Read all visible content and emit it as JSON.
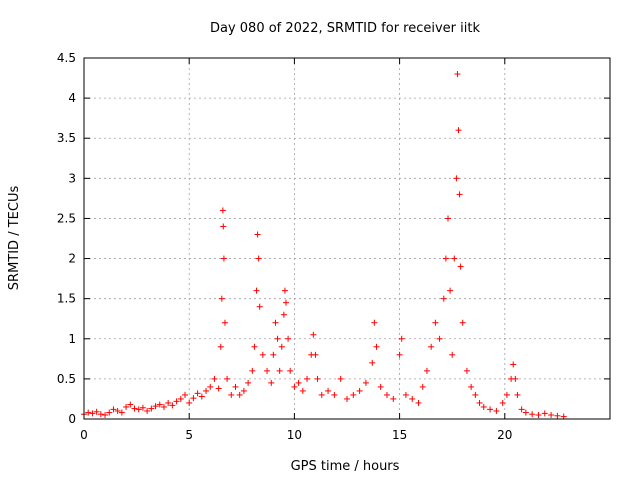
{
  "chart_data": {
    "type": "scatter",
    "title": "Day 080 of 2022, SRMTID for receiver iitk",
    "xlabel": "GPS time / hours",
    "ylabel": "SRMTID / TECUs",
    "xlim": [
      0,
      25
    ],
    "ylim": [
      0,
      4.5
    ],
    "x_ticks": [
      0,
      5,
      10,
      15,
      20
    ],
    "x_tick_labels": [
      "0",
      "5",
      "10",
      "15",
      "20"
    ],
    "y_ticks": [
      0,
      0.5,
      1,
      1.5,
      2,
      2.5,
      3,
      3.5,
      4,
      4.5
    ],
    "y_tick_labels": [
      "0",
      "0.5",
      "1",
      "1.5",
      "2",
      "2.5",
      "3",
      "3.5",
      "4",
      "4.5"
    ],
    "grid": true,
    "marker": "+",
    "color": "#ff0000",
    "series": [
      {
        "name": "SRMTID",
        "points": [
          [
            0.0,
            0.06
          ],
          [
            0.2,
            0.08
          ],
          [
            0.4,
            0.07
          ],
          [
            0.6,
            0.09
          ],
          [
            0.8,
            0.06
          ],
          [
            1.0,
            0.05
          ],
          [
            1.2,
            0.08
          ],
          [
            1.4,
            0.12
          ],
          [
            1.6,
            0.1
          ],
          [
            1.8,
            0.08
          ],
          [
            2.0,
            0.15
          ],
          [
            2.2,
            0.18
          ],
          [
            2.4,
            0.13
          ],
          [
            2.6,
            0.12
          ],
          [
            2.8,
            0.14
          ],
          [
            3.0,
            0.1
          ],
          [
            3.2,
            0.13
          ],
          [
            3.4,
            0.16
          ],
          [
            3.6,
            0.18
          ],
          [
            3.8,
            0.15
          ],
          [
            4.0,
            0.2
          ],
          [
            4.2,
            0.17
          ],
          [
            4.4,
            0.22
          ],
          [
            4.6,
            0.25
          ],
          [
            4.8,
            0.3
          ],
          [
            5.0,
            0.2
          ],
          [
            5.2,
            0.26
          ],
          [
            5.4,
            0.32
          ],
          [
            5.6,
            0.28
          ],
          [
            5.8,
            0.35
          ],
          [
            6.0,
            0.4
          ],
          [
            6.2,
            0.5
          ],
          [
            6.4,
            0.38
          ],
          [
            6.5,
            0.9
          ],
          [
            6.55,
            1.5
          ],
          [
            6.6,
            2.6
          ],
          [
            6.62,
            2.4
          ],
          [
            6.65,
            2.0
          ],
          [
            6.7,
            1.2
          ],
          [
            6.8,
            0.5
          ],
          [
            7.0,
            0.3
          ],
          [
            7.2,
            0.4
          ],
          [
            7.4,
            0.3
          ],
          [
            7.6,
            0.35
          ],
          [
            7.8,
            0.45
          ],
          [
            8.0,
            0.6
          ],
          [
            8.1,
            0.9
          ],
          [
            8.2,
            1.6
          ],
          [
            8.25,
            2.3
          ],
          [
            8.3,
            2.0
          ],
          [
            8.35,
            1.4
          ],
          [
            8.5,
            0.8
          ],
          [
            8.7,
            0.6
          ],
          [
            8.9,
            0.45
          ],
          [
            9.0,
            0.8
          ],
          [
            9.1,
            1.2
          ],
          [
            9.2,
            1.0
          ],
          [
            9.3,
            0.6
          ],
          [
            9.4,
            0.9
          ],
          [
            9.5,
            1.3
          ],
          [
            9.55,
            1.6
          ],
          [
            9.6,
            1.45
          ],
          [
            9.7,
            1.0
          ],
          [
            9.8,
            0.6
          ],
          [
            10.0,
            0.4
          ],
          [
            10.2,
            0.45
          ],
          [
            10.4,
            0.35
          ],
          [
            10.6,
            0.5
          ],
          [
            10.8,
            0.8
          ],
          [
            10.9,
            1.05
          ],
          [
            11.0,
            0.8
          ],
          [
            11.1,
            0.5
          ],
          [
            11.3,
            0.3
          ],
          [
            11.6,
            0.35
          ],
          [
            11.9,
            0.3
          ],
          [
            12.2,
            0.5
          ],
          [
            12.5,
            0.25
          ],
          [
            12.8,
            0.3
          ],
          [
            13.1,
            0.35
          ],
          [
            13.4,
            0.45
          ],
          [
            13.7,
            0.7
          ],
          [
            13.8,
            1.2
          ],
          [
            13.9,
            0.9
          ],
          [
            14.1,
            0.4
          ],
          [
            14.4,
            0.3
          ],
          [
            14.7,
            0.25
          ],
          [
            15.0,
            0.8
          ],
          [
            15.1,
            1.0
          ],
          [
            15.3,
            0.3
          ],
          [
            15.6,
            0.25
          ],
          [
            15.9,
            0.2
          ],
          [
            16.1,
            0.4
          ],
          [
            16.3,
            0.6
          ],
          [
            16.5,
            0.9
          ],
          [
            16.7,
            1.2
          ],
          [
            16.9,
            1.0
          ],
          [
            17.1,
            1.5
          ],
          [
            17.2,
            2.0
          ],
          [
            17.3,
            2.5
          ],
          [
            17.4,
            1.6
          ],
          [
            17.5,
            0.8
          ],
          [
            17.6,
            2.0
          ],
          [
            17.7,
            3.0
          ],
          [
            17.75,
            4.3
          ],
          [
            17.8,
            3.6
          ],
          [
            17.85,
            2.8
          ],
          [
            17.9,
            1.9
          ],
          [
            18.0,
            1.2
          ],
          [
            18.2,
            0.6
          ],
          [
            18.4,
            0.4
          ],
          [
            18.6,
            0.3
          ],
          [
            18.8,
            0.2
          ],
          [
            19.0,
            0.15
          ],
          [
            19.3,
            0.12
          ],
          [
            19.6,
            0.1
          ],
          [
            19.9,
            0.2
          ],
          [
            20.1,
            0.3
          ],
          [
            20.3,
            0.5
          ],
          [
            20.4,
            0.68
          ],
          [
            20.5,
            0.5
          ],
          [
            20.6,
            0.3
          ],
          [
            20.8,
            0.12
          ],
          [
            21.0,
            0.08
          ],
          [
            21.3,
            0.06
          ],
          [
            21.6,
            0.05
          ],
          [
            21.9,
            0.07
          ],
          [
            22.2,
            0.05
          ],
          [
            22.5,
            0.04
          ],
          [
            22.8,
            0.03
          ]
        ]
      }
    ]
  }
}
